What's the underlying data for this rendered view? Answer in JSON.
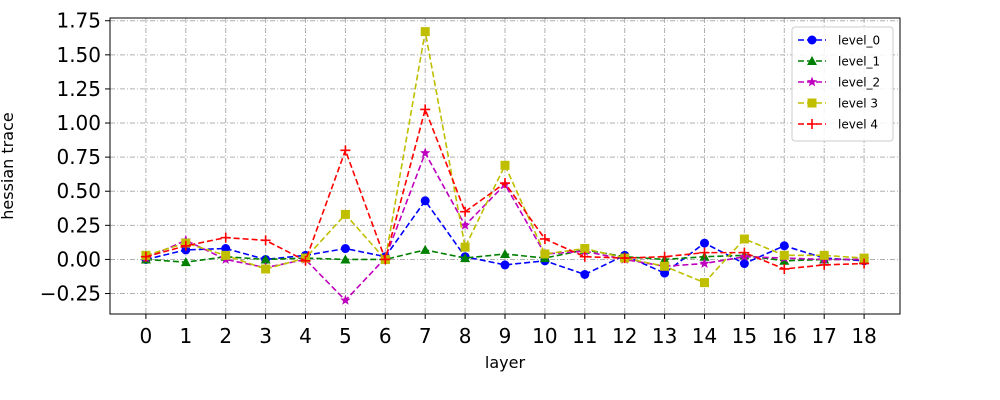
{
  "chart_data": {
    "type": "line",
    "title": "",
    "xlabel": "layer",
    "ylabel": "hessian trace",
    "xlim": [
      -0.9,
      18.9
    ],
    "ylim": [
      -0.4,
      1.77
    ],
    "x": [
      0,
      1,
      2,
      3,
      4,
      5,
      6,
      7,
      8,
      9,
      10,
      11,
      12,
      13,
      14,
      15,
      16,
      17,
      18
    ],
    "x_ticks": [
      0,
      1,
      2,
      3,
      4,
      5,
      6,
      7,
      8,
      9,
      10,
      11,
      12,
      13,
      14,
      15,
      16,
      17,
      18
    ],
    "y_ticks": [
      -0.25,
      0.0,
      0.25,
      0.5,
      0.75,
      1.0,
      1.25,
      1.5,
      1.75
    ],
    "y_tick_labels": [
      "−0.25",
      "0.00",
      "0.25",
      "0.50",
      "0.75",
      "1.00",
      "1.25",
      "1.50",
      "1.75"
    ],
    "grid": true,
    "legend_position": "top-right",
    "series": [
      {
        "name": "level_0",
        "color": "#0000ff",
        "marker": "circle",
        "values": [
          0.0,
          0.07,
          0.08,
          0.0,
          0.03,
          0.08,
          0.02,
          0.43,
          0.02,
          -0.04,
          -0.01,
          -0.11,
          0.03,
          -0.1,
          0.12,
          -0.03,
          0.1,
          0.01,
          -0.01
        ]
      },
      {
        "name": "level_1",
        "color": "#008000",
        "marker": "triangle",
        "values": [
          0.0,
          -0.02,
          0.02,
          0.0,
          0.01,
          0.0,
          0.0,
          0.07,
          0.01,
          0.04,
          0.01,
          0.07,
          0.02,
          0.0,
          0.02,
          0.03,
          -0.01,
          0.0,
          0.0
        ]
      },
      {
        "name": "level_2",
        "color": "#bf00bf",
        "marker": "star",
        "values": [
          0.01,
          0.14,
          0.0,
          -0.06,
          0.0,
          -0.3,
          0.01,
          0.78,
          0.25,
          0.55,
          0.04,
          0.06,
          0.0,
          -0.05,
          -0.03,
          0.02,
          0.01,
          0.0,
          0.0
        ]
      },
      {
        "name": "level 3",
        "color": "#bfbf00",
        "marker": "square",
        "values": [
          0.03,
          0.12,
          0.03,
          -0.07,
          0.01,
          0.33,
          0.0,
          1.67,
          0.09,
          0.69,
          0.04,
          0.08,
          0.01,
          -0.05,
          -0.17,
          0.15,
          0.03,
          0.03,
          0.01
        ]
      },
      {
        "name": "level 4",
        "color": "#ff0000",
        "marker": "plus",
        "values": [
          0.02,
          0.1,
          0.16,
          0.14,
          -0.01,
          0.8,
          0.0,
          1.1,
          0.35,
          0.56,
          0.15,
          0.02,
          0.01,
          0.02,
          0.05,
          0.05,
          -0.07,
          -0.04,
          -0.03
        ]
      }
    ]
  }
}
